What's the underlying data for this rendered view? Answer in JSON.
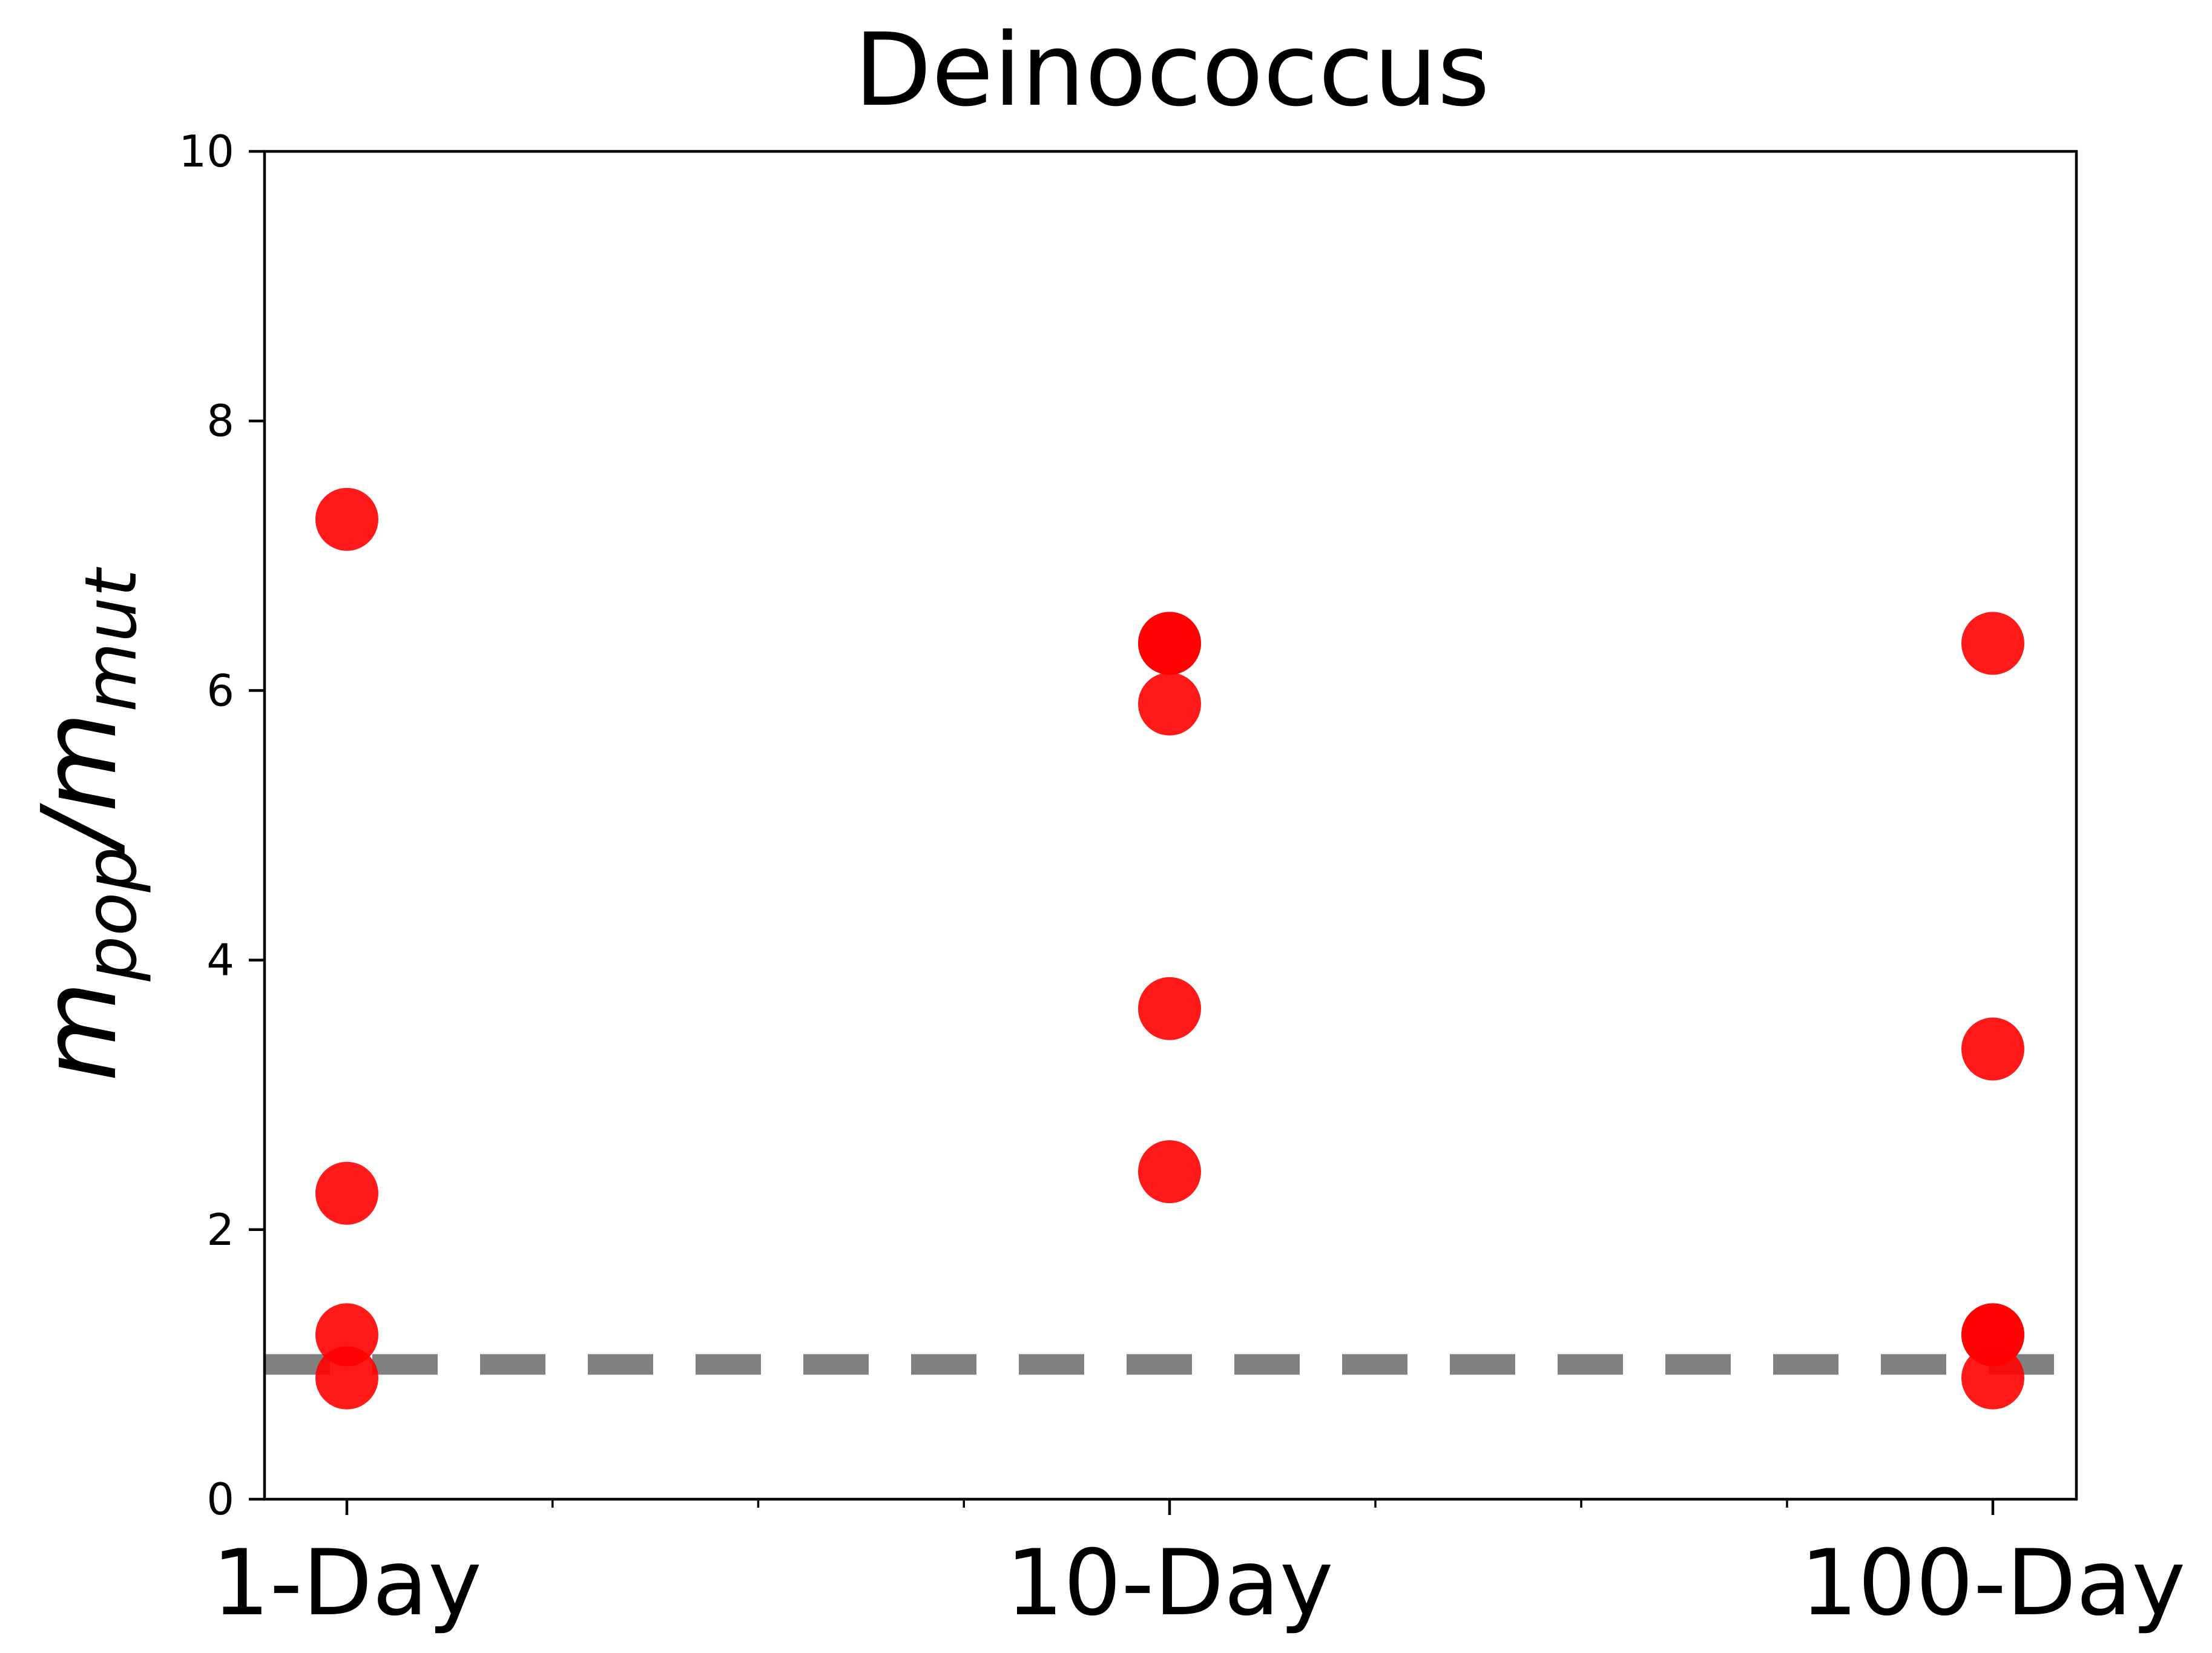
{
  "chart_data": {
    "type": "scatter",
    "title": "Deinococcus",
    "ylabel": {
      "base1": "m",
      "sub1": "pop",
      "slash": "/",
      "base2": "m",
      "sub2": "mut"
    },
    "xlabel": "",
    "categories": [
      "1-Day",
      "10-Day",
      "100-Day"
    ],
    "ylim": [
      0,
      10
    ],
    "yticks": [
      0,
      2,
      4,
      6,
      8,
      10
    ],
    "ytick_labels": [
      "0",
      "2",
      "4",
      "6",
      "8",
      "10"
    ],
    "series": [
      {
        "color": "#ff0000",
        "points": [
          {
            "x": "1-Day",
            "y": 7.27
          },
          {
            "x": "1-Day",
            "y": 2.27
          },
          {
            "x": "1-Day",
            "y": 1.22
          },
          {
            "x": "1-Day",
            "y": 0.9
          },
          {
            "x": "10-Day",
            "y": 6.35
          },
          {
            "x": "10-Day",
            "y": 6.35
          },
          {
            "x": "10-Day",
            "y": 5.9
          },
          {
            "x": "10-Day",
            "y": 3.64
          },
          {
            "x": "10-Day",
            "y": 2.43
          },
          {
            "x": "100-Day",
            "y": 6.35
          },
          {
            "x": "100-Day",
            "y": 3.34
          },
          {
            "x": "100-Day",
            "y": 1.22
          },
          {
            "x": "100-Day",
            "y": 1.22
          },
          {
            "x": "100-Day",
            "y": 0.9
          }
        ]
      }
    ],
    "reference_line": {
      "y": 1,
      "style": "dashed",
      "color": "#808080"
    },
    "grid": false,
    "legend": "none"
  }
}
